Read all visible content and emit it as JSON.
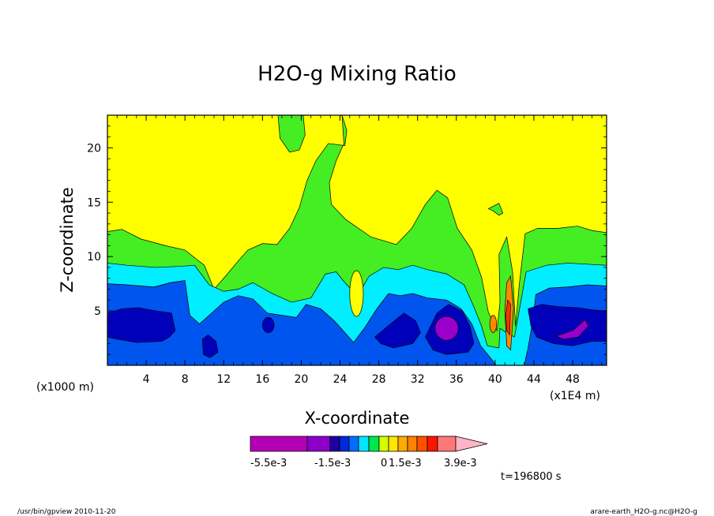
{
  "footer": {
    "left": "/usr/bin/gpview  2010-11-20",
    "right": "arare-earth_H2O-g.nc@H2O-g"
  },
  "chart_data": {
    "type": "heatmap",
    "title": "H2O-g Mixing Ratio",
    "xlabel": "X-coordinate",
    "ylabel": "Z-coordinate",
    "x_unit_label": "(x1000 m)",
    "x_scale_label": "(x1E4 m)",
    "xlim": [
      0,
      51.5
    ],
    "ylim": [
      0,
      23
    ],
    "x_ticks": [
      4,
      8,
      12,
      16,
      20,
      24,
      28,
      32,
      36,
      40,
      44,
      48
    ],
    "y_ticks": [
      5,
      10,
      15,
      20
    ],
    "time_label": "t=196800 s",
    "colorbar": {
      "labels": [
        "-5.5e-3",
        "-1.5e-3",
        "0",
        "1.5e-3",
        "3.9e-3"
      ],
      "colors": [
        "#b400b4",
        "#8c00c8",
        "#1e00a0",
        "#0028dc",
        "#006eff",
        "#00e6ff",
        "#00e650",
        "#d2ff00",
        "#ffe600",
        "#ffaa00",
        "#ff8200",
        "#ff5000",
        "#ff1400",
        "#ff7878",
        "#ffb4c8"
      ]
    },
    "field_colors": {
      "upper": "#ffff00",
      "mid": "#44ee22",
      "moist": "#00eeff",
      "wet": "#0055ee",
      "core": "#0000bb",
      "max": "#9900cc",
      "warm": "#ff8800",
      "hot": "#ff3300"
    }
  }
}
